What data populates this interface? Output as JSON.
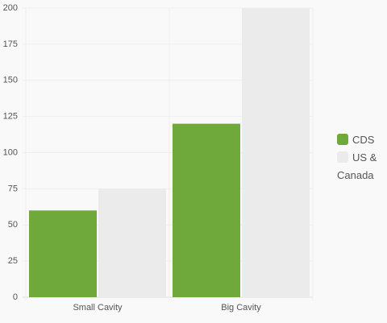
{
  "chart_data": {
    "type": "bar",
    "categories": [
      "Small Cavity",
      "Big Cavity"
    ],
    "series": [
      {
        "name": "CDS",
        "color": "#6fa83b",
        "values": [
          60,
          120
        ]
      },
      {
        "name": "US & Canada",
        "color": "#ebebeb",
        "values": [
          75,
          200
        ]
      }
    ],
    "ylim": [
      0,
      200
    ],
    "yticks": [
      0,
      25,
      50,
      75,
      100,
      125,
      150,
      175,
      200
    ],
    "grid": true,
    "legend": "right"
  }
}
